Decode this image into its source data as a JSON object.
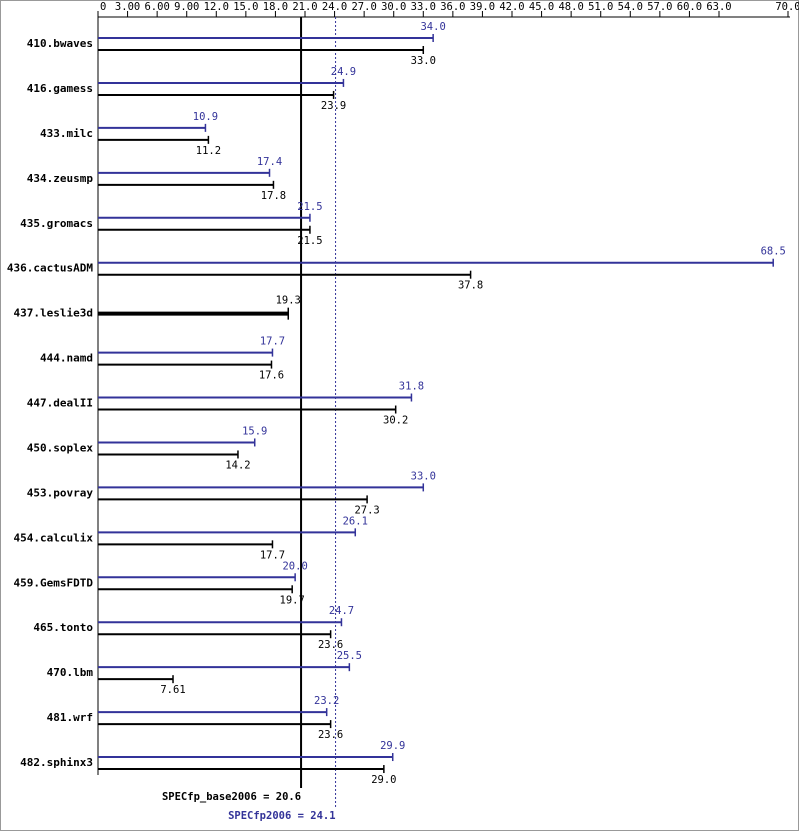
{
  "chart_data": {
    "type": "bar",
    "orientation": "horizontal",
    "categories": [
      "410.bwaves",
      "416.gamess",
      "433.milc",
      "434.zeusmp",
      "435.gromacs",
      "436.cactusADM",
      "437.leslie3d",
      "444.namd",
      "447.dealII",
      "450.soplex",
      "453.povray",
      "454.calculix",
      "459.GemsFDTD",
      "465.tonto",
      "470.lbm",
      "481.wrf",
      "482.sphinx3"
    ],
    "series": [
      {
        "color": "#333399",
        "values": [
          34.0,
          24.9,
          10.9,
          17.4,
          21.5,
          68.5,
          null,
          17.7,
          31.8,
          15.9,
          33.0,
          26.1,
          20.0,
          24.7,
          25.5,
          23.2,
          29.9
        ],
        "value_labels": [
          "34.0",
          "24.9",
          "10.9",
          "17.4",
          "21.5",
          "68.5",
          null,
          "17.7",
          "31.8",
          "15.9",
          "33.0",
          "26.1",
          "20.0",
          "24.7",
          "25.5",
          "23.2",
          "29.9"
        ]
      },
      {
        "color": "#000000",
        "values": [
          33.0,
          23.9,
          11.2,
          17.8,
          21.5,
          37.8,
          19.3,
          17.6,
          30.2,
          14.2,
          27.3,
          17.7,
          19.7,
          23.6,
          7.61,
          23.6,
          29.0
        ],
        "value_labels": [
          "33.0",
          "23.9",
          "11.2",
          "17.8",
          "21.5",
          "37.8",
          "19.3",
          "17.6",
          "30.2",
          "14.2",
          "27.3",
          "17.7",
          "19.7",
          "23.6",
          "7.61",
          "23.6",
          "29.0"
        ]
      }
    ],
    "xlim": [
      0,
      70
    ],
    "xticks": [
      0,
      {
        "value": 3,
        "label": "3.00"
      },
      {
        "value": 6,
        "label": "6.00"
      },
      {
        "value": 9,
        "label": "9.00"
      },
      {
        "value": 12,
        "label": "12.0"
      },
      {
        "value": 15,
        "label": "15.0"
      },
      {
        "value": 18,
        "label": "18.0"
      },
      {
        "value": 21,
        "label": "21.0"
      },
      {
        "value": 24,
        "label": "24.0"
      },
      {
        "value": 27,
        "label": "27.0"
      },
      {
        "value": 30,
        "label": "30.0"
      },
      {
        "value": 33,
        "label": "33.0"
      },
      {
        "value": 36,
        "label": "36.0"
      },
      {
        "value": 39,
        "label": "39.0"
      },
      {
        "value": 42,
        "label": "42.0"
      },
      {
        "value": 45,
        "label": "45.0"
      },
      {
        "value": 48,
        "label": "48.0"
      },
      {
        "value": 51,
        "label": "51.0"
      },
      {
        "value": 54,
        "label": "54.0"
      },
      {
        "value": 57,
        "label": "57.0"
      },
      {
        "value": 60,
        "label": "60.0"
      },
      {
        "value": 63,
        "label": "63.0"
      },
      {
        "value": 70,
        "label": "70.0"
      }
    ],
    "reference_lines": [
      {
        "label": "SPECfp_base2006 = 20.6",
        "value": 20.6,
        "color": "#000000",
        "style": "solid"
      },
      {
        "label": "SPECfp2006 = 24.1",
        "value": 24.1,
        "color": "#333399",
        "style": "dotted"
      }
    ]
  }
}
